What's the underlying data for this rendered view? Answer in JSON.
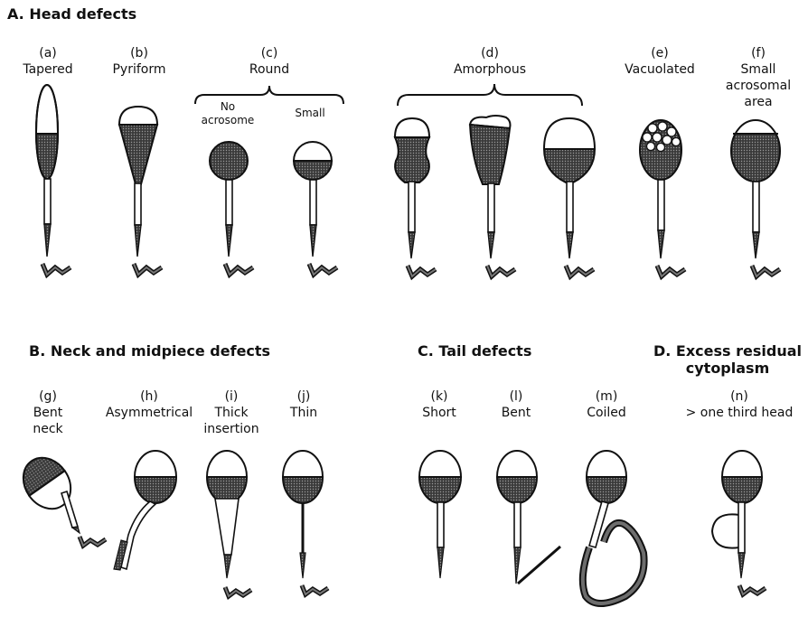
{
  "sections": {
    "head": "A. Head defects",
    "neck": "B. Neck and midpiece defects",
    "tail": "C. Tail defects",
    "excess_line1": "D. Excess residual",
    "excess_line2": "cytoplasm"
  },
  "items": {
    "a": {
      "letter": "(a)",
      "l1": "Tapered"
    },
    "b": {
      "letter": "(b)",
      "l1": "Pyriform"
    },
    "c": {
      "letter": "(c)",
      "l1": "Round",
      "sub1a": "No",
      "sub1b": "acrosome",
      "sub2": "Small"
    },
    "d": {
      "letter": "(d)",
      "l1": "Amorphous"
    },
    "e": {
      "letter": "(e)",
      "l1": "Vacuolated"
    },
    "f": {
      "letter": "(f)",
      "l1": "Small",
      "l2": "acrosomal",
      "l3": "area"
    },
    "g": {
      "letter": "(g)",
      "l1": "Bent",
      "l2": "neck"
    },
    "h": {
      "letter": "(h)",
      "l1": "Asymmetrical"
    },
    "i": {
      "letter": "(i)",
      "l1": "Thick",
      "l2": "insertion"
    },
    "j": {
      "letter": "(j)",
      "l1": "Thin"
    },
    "k": {
      "letter": "(k)",
      "l1": "Short"
    },
    "l": {
      "letter": "(l)",
      "l1": "Bent"
    },
    "m": {
      "letter": "(m)",
      "l1": "Coiled"
    },
    "n": {
      "letter": "(n)",
      "l1": "> one third head"
    }
  }
}
